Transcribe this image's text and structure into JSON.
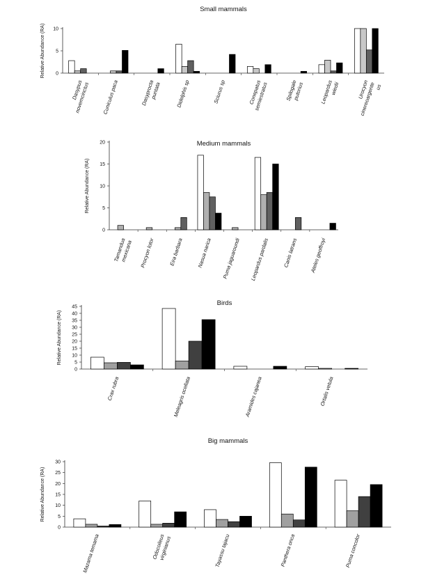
{
  "chart_data": [
    {
      "type": "bar",
      "title": "Small mammals",
      "ylabel": "Relative Abundance (RA)",
      "ylim": [
        0,
        10
      ],
      "yticks": [
        "0",
        "5",
        "10"
      ],
      "categories": [
        [
          "Dasypus",
          "novemcinctus"
        ],
        [
          "Cuniculus paca"
        ],
        [
          "Dasyprocta",
          "puntata"
        ],
        [
          "Didelphis sp"
        ],
        [
          "Sciurus sp"
        ],
        [
          "Conepatus",
          "semiestratus"
        ],
        [
          "Spilogale",
          "putorius"
        ],
        [
          "Leopardus",
          "wiedii"
        ],
        [
          "Urocyon",
          "cinereoargente",
          "us"
        ]
      ],
      "series": [
        {
          "fill": "#ffffff",
          "values": [
            2.8,
            0,
            0,
            6.5,
            0,
            1.5,
            0,
            1.9,
            10
          ]
        },
        {
          "fill": "#c8c8c8",
          "values": [
            0.5,
            0.5,
            0,
            1.5,
            0,
            1.0,
            0,
            2.9,
            10
          ]
        },
        {
          "fill": "#606060",
          "values": [
            1.0,
            0.5,
            0,
            2.8,
            0,
            0,
            0,
            0.5,
            5.2
          ]
        },
        {
          "fill": "#000000",
          "values": [
            0,
            5.1,
            1.0,
            0.4,
            4.2,
            1.9,
            0.4,
            2.3,
            10
          ]
        }
      ],
      "grid": false,
      "legend": "none"
    },
    {
      "type": "bar",
      "title": "Medium mammals",
      "ylabel": "Relative Abundance (RA)",
      "ylim": [
        0,
        20
      ],
      "yticks": [
        "0",
        "5",
        "10",
        "15",
        "20"
      ],
      "categories": [
        [
          "Tamandua",
          "mexicana"
        ],
        [
          "Procyon lotor"
        ],
        [
          "Eira barbara"
        ],
        [
          "Nasua narica"
        ],
        [
          "Puma jaguaroundi"
        ],
        [
          "Leopardus pardalis"
        ],
        [
          "Canis latrans"
        ],
        [
          "Ateles geoffroyi"
        ]
      ],
      "series": [
        {
          "fill": "#ffffff",
          "values": [
            0,
            0,
            0,
            17,
            0,
            16.5,
            0,
            0
          ]
        },
        {
          "fill": "#b0b0b0",
          "values": [
            1.0,
            0.5,
            0.5,
            8.5,
            0.5,
            8.0,
            0,
            0
          ]
        },
        {
          "fill": "#606060",
          "values": [
            0,
            0,
            2.8,
            7.5,
            0,
            8.5,
            2.8,
            0
          ]
        },
        {
          "fill": "#000000",
          "values": [
            0,
            0,
            0,
            3.8,
            0,
            15,
            0,
            1.5
          ]
        }
      ],
      "grid": false,
      "legend": "none"
    },
    {
      "type": "bar",
      "title": "Birds",
      "ylabel": "Relative Abundance (RA)",
      "ylim": [
        0,
        45
      ],
      "yticks": [
        "0",
        "5",
        "10",
        "15",
        "20",
        "25",
        "30",
        "35",
        "40",
        "45"
      ],
      "categories": [
        [
          "Crax rubra"
        ],
        [
          "Meleagris ocellata"
        ],
        [
          "Aramides cajanea"
        ],
        [
          "Ortalis vetula"
        ]
      ],
      "series": [
        {
          "fill": "#ffffff",
          "values": [
            8.5,
            43.5,
            2.0,
            1.7
          ]
        },
        {
          "fill": "#a0a0a0",
          "values": [
            4.5,
            5.8,
            0,
            0.5
          ]
        },
        {
          "fill": "#404040",
          "values": [
            4.8,
            20,
            0,
            0
          ]
        },
        {
          "fill": "#000000",
          "values": [
            3.0,
            35.5,
            2.0,
            0.5
          ]
        }
      ],
      "grid": false,
      "legend": "none"
    },
    {
      "type": "bar",
      "title": "Big mammals",
      "ylabel": "Relative Abundance (RA)",
      "ylim": [
        0,
        30
      ],
      "yticks": [
        "0",
        "5",
        "10",
        "15",
        "20",
        "25",
        "30"
      ],
      "categories": [
        [
          "Mazama temama"
        ],
        [
          "Odocoileus",
          "virginianus"
        ],
        [
          "Tayassu tajacu"
        ],
        [
          "Panthera onca"
        ],
        [
          "Puma concolor"
        ]
      ],
      "series": [
        {
          "fill": "#ffffff",
          "values": [
            3.8,
            12,
            8.0,
            29.5,
            21.5
          ]
        },
        {
          "fill": "#a0a0a0",
          "values": [
            1.3,
            1.3,
            3.5,
            6.0,
            7.5
          ]
        },
        {
          "fill": "#404040",
          "values": [
            0.5,
            1.8,
            2.5,
            3.3,
            14
          ]
        },
        {
          "fill": "#000000",
          "values": [
            1.2,
            7.0,
            5.0,
            27.5,
            19.5
          ]
        }
      ],
      "grid": false,
      "legend": "none"
    }
  ]
}
